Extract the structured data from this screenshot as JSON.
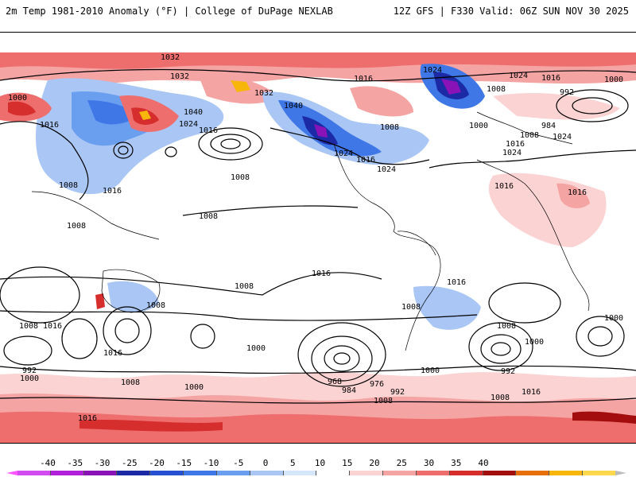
{
  "header": {
    "title_left": "2m Temp 1981-2010 Anomaly (°F) | College of DuPage NEXLAB",
    "title_right": "12Z GFS | F330 Valid: 06Z SUN NOV 30 2025"
  },
  "colorbar": {
    "labels": [
      "-40",
      "-35",
      "-30",
      "-25",
      "-20",
      "-15",
      "-10",
      "-5",
      "0",
      "5",
      "10",
      "15",
      "20",
      "25",
      "30",
      "35",
      "40"
    ],
    "colors": [
      "#d24bf0",
      "#b021d9",
      "#8a13b8",
      "#1c2aa6",
      "#2650d2",
      "#3f78e6",
      "#6a9fef",
      "#a9c6f5",
      "#d6e6fb",
      "#ffffff",
      "#fbd3d3",
      "#f5a4a4",
      "#ee6e6e",
      "#d62d2d",
      "#a40d0d",
      "#e7700c",
      "#f8b60a",
      "#ffd84d"
    ],
    "arrow_left_color": "#ff55ff",
    "arrow_right_color": "#bbbbbb"
  },
  "map": {
    "pressure_labels": [
      "1032",
      "1016",
      "1024",
      "1000",
      "1032",
      "1040",
      "1016",
      "1024",
      "1008",
      "1040",
      "1032",
      "1016",
      "1024",
      "1008",
      "1016",
      "1008",
      "1024",
      "1000",
      "984",
      "992",
      "1008",
      "1024",
      "1016",
      "1008",
      "1008",
      "1008",
      "1016",
      "1016",
      "1008",
      "1000",
      "1016",
      "1016",
      "1000",
      "1008",
      "1008",
      "1008",
      "1016",
      "1000",
      "1016",
      "1000",
      "992",
      "1000",
      "968",
      "984",
      "976",
      "992",
      "1008",
      "1016",
      "992",
      "1000",
      "1008",
      "1008",
      "1000",
      "1008",
      "1016",
      "1016",
      "1016",
      "1024",
      "1024"
    ]
  }
}
